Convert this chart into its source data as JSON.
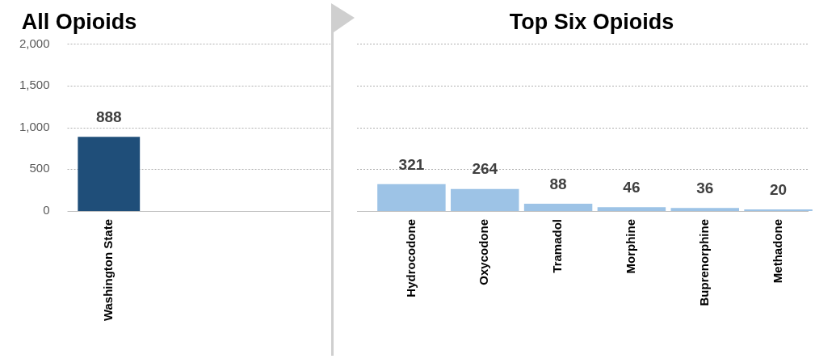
{
  "chart_data": [
    {
      "type": "bar",
      "title": "All Opioids",
      "categories": [
        "Washington State"
      ],
      "values": [
        888
      ],
      "color": "#1f4e79",
      "ylim": [
        0,
        2000
      ],
      "yticks": [
        0,
        500,
        {
          "value": 1000,
          "label": "1,000"
        },
        {
          "value": 1500,
          "label": "1,500"
        },
        {
          "value": 2000,
          "label": "2,000"
        }
      ],
      "grid": "y",
      "data_labels": true
    },
    {
      "type": "bar",
      "title": "Top Six Opioids",
      "categories": [
        "Hydrocodone",
        "Oxycodone",
        "Tramadol",
        "Morphine",
        "Buprenorphine",
        "Methadone"
      ],
      "values": [
        321,
        264,
        88,
        46,
        36,
        20
      ],
      "color": "#9dc3e6",
      "ylim": [
        0,
        2000
      ],
      "yticks": [
        0,
        500,
        1000,
        1500,
        2000
      ],
      "grid": "y",
      "data_labels": true,
      "tick_labels": "x"
    }
  ]
}
